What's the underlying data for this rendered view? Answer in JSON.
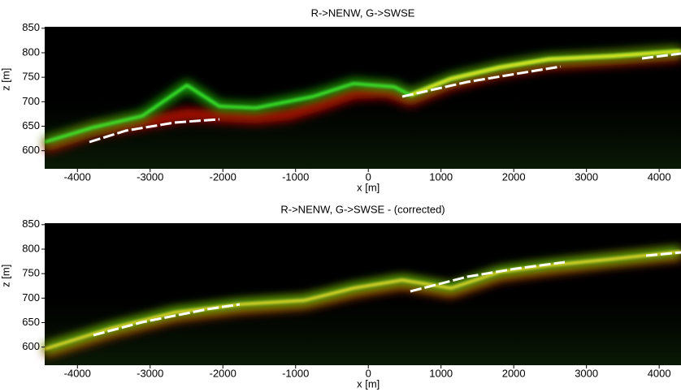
{
  "chart_data": [
    {
      "type": "heatmap",
      "title": "R->NENW, G->SWSE",
      "x_label": "x [m]",
      "y_label": "z [m]",
      "xlim": [
        -4450,
        4300
      ],
      "ylim": [
        563,
        853
      ],
      "xticks": [
        -4000,
        -3000,
        -2000,
        -1000,
        0,
        1000,
        2000,
        3000,
        4000
      ],
      "yticks": [
        600,
        650,
        700,
        750,
        800,
        850
      ]
    },
    {
      "type": "heatmap",
      "title": "R->NENW, G->SWSE - (corrected)",
      "x_label": "x [m]",
      "y_label": "z [m]",
      "xlim": [
        -4450,
        4300
      ],
      "ylim": [
        563,
        853
      ],
      "xticks": [
        -4000,
        -3000,
        -2000,
        -1000,
        0,
        1000,
        2000,
        3000,
        4000
      ],
      "yticks": [
        600,
        650,
        700,
        750,
        800,
        850
      ]
    }
  ]
}
